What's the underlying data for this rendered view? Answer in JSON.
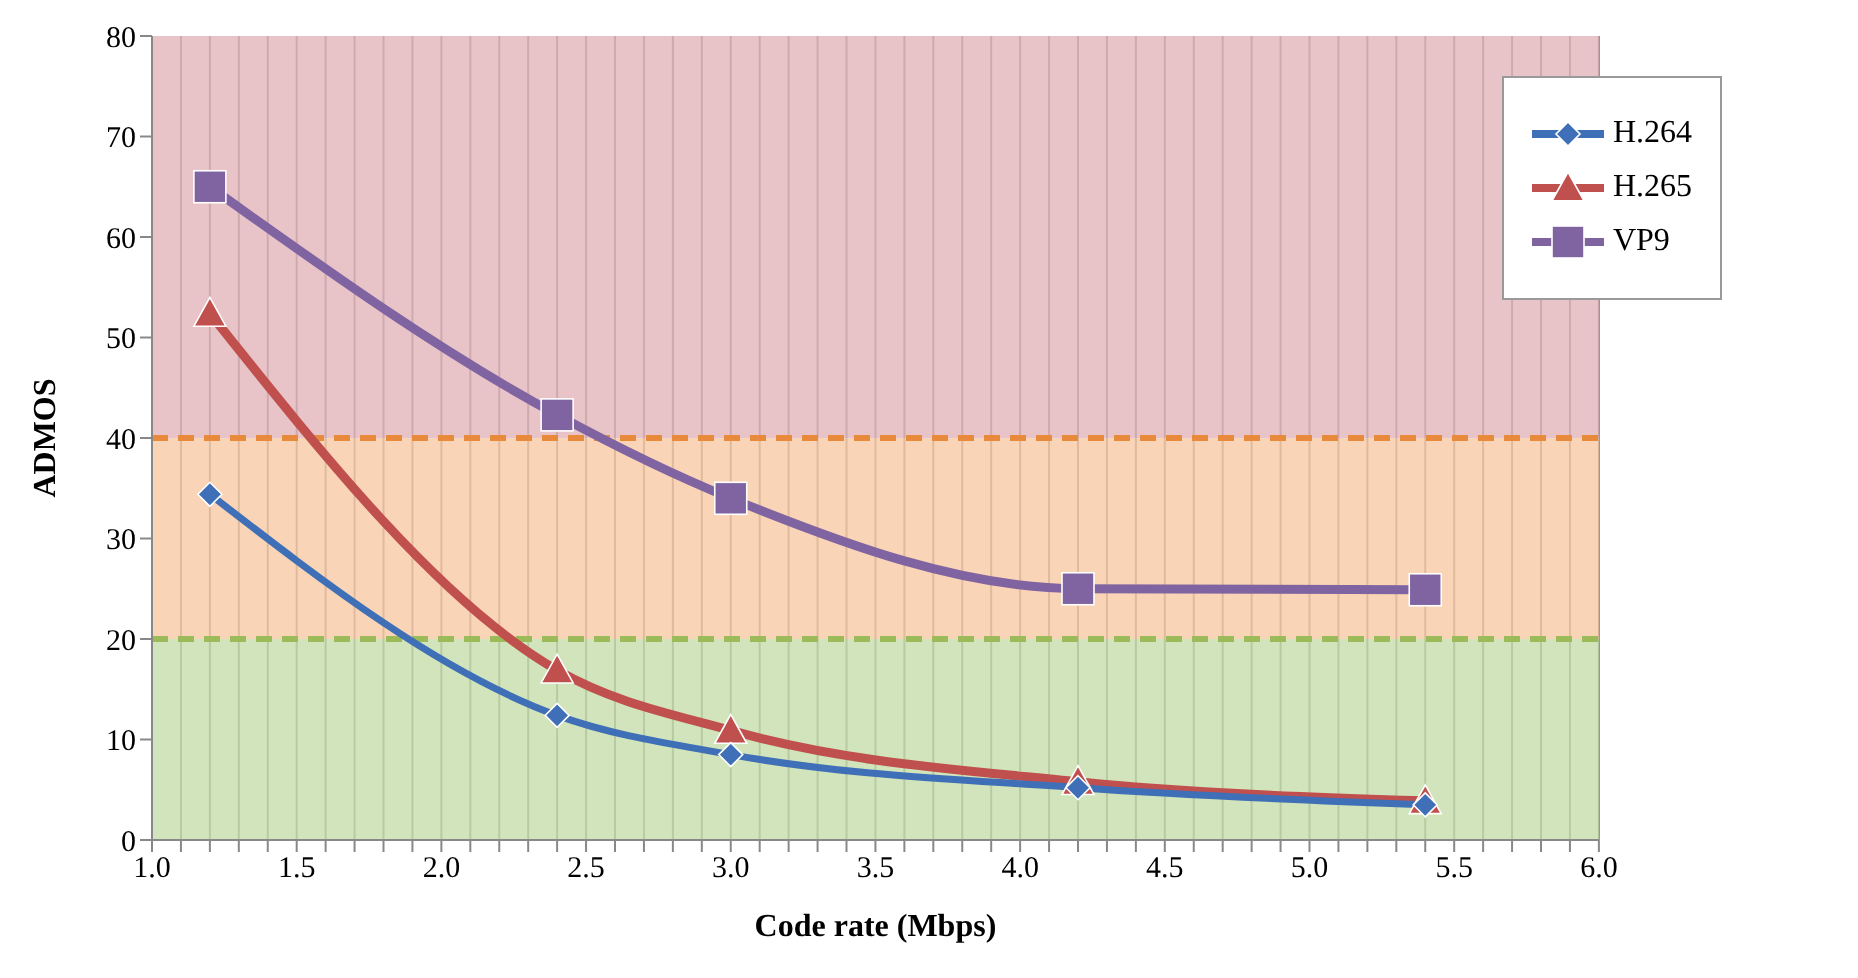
{
  "chart_data": {
    "type": "line",
    "xlabel": "Code rate (Mbps)",
    "ylabel": "ADMOS",
    "xlim": [
      1.0,
      6.0
    ],
    "xticks": [
      {
        "value": 1.0,
        "label": "1.0"
      },
      {
        "value": 1.1,
        "label": null
      },
      {
        "value": 1.2,
        "label": null
      },
      {
        "value": 1.3,
        "label": null
      },
      {
        "value": 1.4,
        "label": null
      },
      {
        "value": 1.5,
        "label": "1.5"
      },
      {
        "value": 1.6,
        "label": null
      },
      {
        "value": 1.7,
        "label": null
      },
      {
        "value": 1.8,
        "label": null
      },
      {
        "value": 1.9,
        "label": null
      },
      {
        "value": 2.0,
        "label": "2.0"
      },
      {
        "value": 2.1,
        "label": null
      },
      {
        "value": 2.2,
        "label": null
      },
      {
        "value": 2.3,
        "label": null
      },
      {
        "value": 2.4,
        "label": null
      },
      {
        "value": 2.5,
        "label": "2.5"
      },
      {
        "value": 2.6,
        "label": null
      },
      {
        "value": 2.7,
        "label": null
      },
      {
        "value": 2.8,
        "label": null
      },
      {
        "value": 2.9,
        "label": null
      },
      {
        "value": 3.0,
        "label": "3.0"
      },
      {
        "value": 3.1,
        "label": null
      },
      {
        "value": 3.2,
        "label": null
      },
      {
        "value": 3.3,
        "label": null
      },
      {
        "value": 3.4,
        "label": null
      },
      {
        "value": 3.5,
        "label": "3.5"
      },
      {
        "value": 3.6,
        "label": null
      },
      {
        "value": 3.7,
        "label": null
      },
      {
        "value": 3.8,
        "label": null
      },
      {
        "value": 3.9,
        "label": null
      },
      {
        "value": 4.0,
        "label": "4.0"
      },
      {
        "value": 4.1,
        "label": null
      },
      {
        "value": 4.2,
        "label": null
      },
      {
        "value": 4.3,
        "label": null
      },
      {
        "value": 4.4,
        "label": null
      },
      {
        "value": 4.5,
        "label": "4.5"
      },
      {
        "value": 4.6,
        "label": null
      },
      {
        "value": 4.7,
        "label": null
      },
      {
        "value": 4.8,
        "label": null
      },
      {
        "value": 4.9,
        "label": null
      },
      {
        "value": 5.0,
        "label": "5.0"
      },
      {
        "value": 5.1,
        "label": null
      },
      {
        "value": 5.2,
        "label": null
      },
      {
        "value": 5.3,
        "label": null
      },
      {
        "value": 5.4,
        "label": null
      },
      {
        "value": 5.5,
        "label": "5.5"
      },
      {
        "value": 5.6,
        "label": null
      },
      {
        "value": 5.7,
        "label": null
      },
      {
        "value": 5.8,
        "label": null
      },
      {
        "value": 5.9,
        "label": null
      },
      {
        "value": 6.0,
        "label": "6.0"
      }
    ],
    "ylim": [
      0,
      80
    ],
    "yticks": [
      0,
      10,
      20,
      30,
      40,
      50,
      60,
      70,
      80
    ],
    "x": [
      1.2,
      2.4,
      3.0,
      4.2,
      5.4
    ],
    "series": [
      {
        "name": "H.264",
        "color": "#3f6fb6",
        "marker": "diamond",
        "values": [
          34.4,
          12.4,
          8.5,
          5.2,
          3.5
        ]
      },
      {
        "name": "H.265",
        "color": "#c0504d",
        "marker": "triangle",
        "values": [
          52.4,
          16.9,
          10.9,
          5.8,
          3.9
        ]
      },
      {
        "name": "VP9",
        "color": "#8064a2",
        "marker": "square",
        "values": [
          65,
          42.3,
          34,
          25,
          24.9
        ]
      }
    ],
    "bands": [
      {
        "axis": "y",
        "from": 0,
        "to": 20,
        "color": "#c4dca8"
      },
      {
        "axis": "y",
        "from": 20,
        "to": 40,
        "color": "#f8c8a2"
      },
      {
        "axis": "y",
        "from": 40,
        "to": 80,
        "color": "#e2b2b8"
      }
    ],
    "ref_lines": [
      {
        "axis": "y",
        "value": 20,
        "color": "#9bbb59",
        "line_style": "dashed"
      },
      {
        "axis": "y",
        "value": 40,
        "color": "#e88a3c",
        "line_style": "dashed"
      }
    ],
    "grid": "x",
    "legend": "top right",
    "line_style": "solid"
  }
}
